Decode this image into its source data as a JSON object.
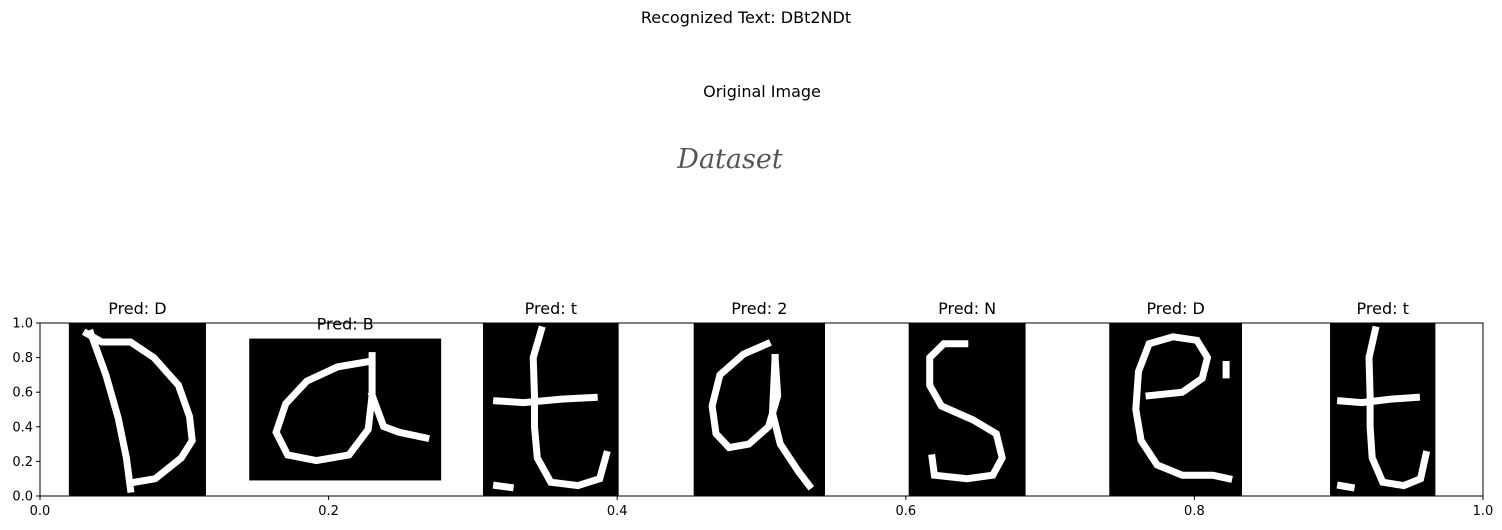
{
  "figure": {
    "suptitle": "Recognized Text: DBt2NDt"
  },
  "original": {
    "title": "Original Image",
    "handwriting_text": "Dataset"
  },
  "chart_data": {
    "type": "image-strip",
    "xlim": [
      0.0,
      1.0
    ],
    "ylim": [
      0.0,
      1.0
    ],
    "xticks": [
      "0.0",
      "0.2",
      "0.4",
      "0.6",
      "0.8",
      "1.0"
    ],
    "yticks": [
      "0.0",
      "0.2",
      "0.4",
      "0.6",
      "0.8",
      "1.0"
    ],
    "segments": [
      {
        "glyph": "D",
        "title": "Pred: D",
        "x0": 0.02,
        "x1": 0.115,
        "y0": 0.0,
        "y1": 1.0
      },
      {
        "glyph": "a",
        "title": "Pred: B",
        "x0": 0.145,
        "x1": 0.278,
        "y0": 0.09,
        "y1": 0.91
      },
      {
        "glyph": "t",
        "title": "Pred: t",
        "x0": 0.307,
        "x1": 0.401,
        "y0": 0.0,
        "y1": 1.0
      },
      {
        "glyph": "a2",
        "title": "Pred: 2",
        "x0": 0.453,
        "x1": 0.544,
        "y0": 0.0,
        "y1": 1.0
      },
      {
        "glyph": "s",
        "title": "Pred: N",
        "x0": 0.602,
        "x1": 0.683,
        "y0": 0.0,
        "y1": 1.0
      },
      {
        "glyph": "e",
        "title": "Pred: D",
        "x0": 0.741,
        "x1": 0.833,
        "y0": 0.0,
        "y1": 1.0
      },
      {
        "glyph": "t",
        "title": "Pred: t",
        "x0": 0.894,
        "x1": 0.967,
        "y0": 0.0,
        "y1": 1.0
      }
    ]
  }
}
